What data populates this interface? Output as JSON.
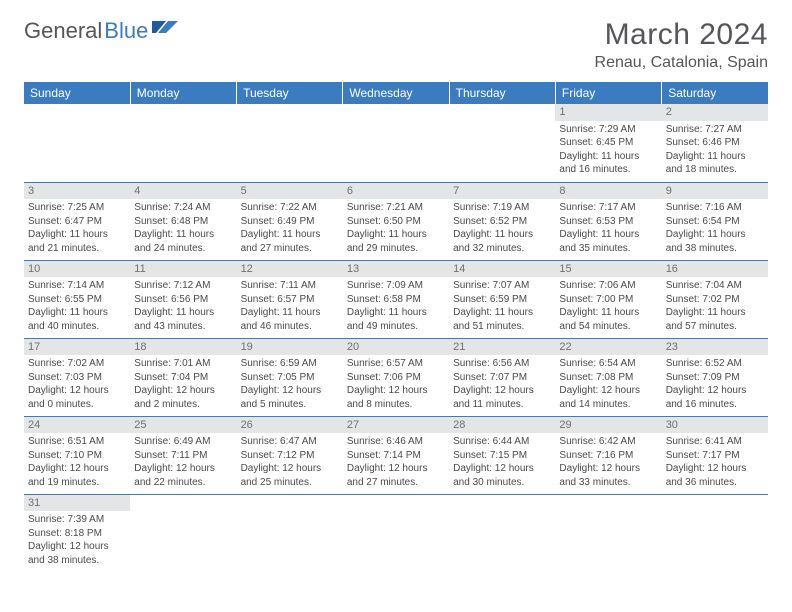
{
  "logo": {
    "text1": "General",
    "text2": "Blue"
  },
  "title": "March 2024",
  "location": "Renau, Catalonia, Spain",
  "colors": {
    "header_bg": "#3b7bbf",
    "header_text": "#ffffff",
    "daynum_bg": "#e4e5e7",
    "rule": "#3b7bbf",
    "body_text": "#4a4a4a",
    "title_text": "#55565a"
  },
  "weekdays": [
    "Sunday",
    "Monday",
    "Tuesday",
    "Wednesday",
    "Thursday",
    "Friday",
    "Saturday"
  ],
  "weeks": [
    [
      {
        "empty": true
      },
      {
        "empty": true
      },
      {
        "empty": true
      },
      {
        "empty": true
      },
      {
        "empty": true
      },
      {
        "day": "1",
        "sunrise": "Sunrise: 7:29 AM",
        "sunset": "Sunset: 6:45 PM",
        "day1": "Daylight: 11 hours",
        "day2": "and 16 minutes."
      },
      {
        "day": "2",
        "sunrise": "Sunrise: 7:27 AM",
        "sunset": "Sunset: 6:46 PM",
        "day1": "Daylight: 11 hours",
        "day2": "and 18 minutes."
      }
    ],
    [
      {
        "day": "3",
        "sunrise": "Sunrise: 7:25 AM",
        "sunset": "Sunset: 6:47 PM",
        "day1": "Daylight: 11 hours",
        "day2": "and 21 minutes."
      },
      {
        "day": "4",
        "sunrise": "Sunrise: 7:24 AM",
        "sunset": "Sunset: 6:48 PM",
        "day1": "Daylight: 11 hours",
        "day2": "and 24 minutes."
      },
      {
        "day": "5",
        "sunrise": "Sunrise: 7:22 AM",
        "sunset": "Sunset: 6:49 PM",
        "day1": "Daylight: 11 hours",
        "day2": "and 27 minutes."
      },
      {
        "day": "6",
        "sunrise": "Sunrise: 7:21 AM",
        "sunset": "Sunset: 6:50 PM",
        "day1": "Daylight: 11 hours",
        "day2": "and 29 minutes."
      },
      {
        "day": "7",
        "sunrise": "Sunrise: 7:19 AM",
        "sunset": "Sunset: 6:52 PM",
        "day1": "Daylight: 11 hours",
        "day2": "and 32 minutes."
      },
      {
        "day": "8",
        "sunrise": "Sunrise: 7:17 AM",
        "sunset": "Sunset: 6:53 PM",
        "day1": "Daylight: 11 hours",
        "day2": "and 35 minutes."
      },
      {
        "day": "9",
        "sunrise": "Sunrise: 7:16 AM",
        "sunset": "Sunset: 6:54 PM",
        "day1": "Daylight: 11 hours",
        "day2": "and 38 minutes."
      }
    ],
    [
      {
        "day": "10",
        "sunrise": "Sunrise: 7:14 AM",
        "sunset": "Sunset: 6:55 PM",
        "day1": "Daylight: 11 hours",
        "day2": "and 40 minutes."
      },
      {
        "day": "11",
        "sunrise": "Sunrise: 7:12 AM",
        "sunset": "Sunset: 6:56 PM",
        "day1": "Daylight: 11 hours",
        "day2": "and 43 minutes."
      },
      {
        "day": "12",
        "sunrise": "Sunrise: 7:11 AM",
        "sunset": "Sunset: 6:57 PM",
        "day1": "Daylight: 11 hours",
        "day2": "and 46 minutes."
      },
      {
        "day": "13",
        "sunrise": "Sunrise: 7:09 AM",
        "sunset": "Sunset: 6:58 PM",
        "day1": "Daylight: 11 hours",
        "day2": "and 49 minutes."
      },
      {
        "day": "14",
        "sunrise": "Sunrise: 7:07 AM",
        "sunset": "Sunset: 6:59 PM",
        "day1": "Daylight: 11 hours",
        "day2": "and 51 minutes."
      },
      {
        "day": "15",
        "sunrise": "Sunrise: 7:06 AM",
        "sunset": "Sunset: 7:00 PM",
        "day1": "Daylight: 11 hours",
        "day2": "and 54 minutes."
      },
      {
        "day": "16",
        "sunrise": "Sunrise: 7:04 AM",
        "sunset": "Sunset: 7:02 PM",
        "day1": "Daylight: 11 hours",
        "day2": "and 57 minutes."
      }
    ],
    [
      {
        "day": "17",
        "sunrise": "Sunrise: 7:02 AM",
        "sunset": "Sunset: 7:03 PM",
        "day1": "Daylight: 12 hours",
        "day2": "and 0 minutes."
      },
      {
        "day": "18",
        "sunrise": "Sunrise: 7:01 AM",
        "sunset": "Sunset: 7:04 PM",
        "day1": "Daylight: 12 hours",
        "day2": "and 2 minutes."
      },
      {
        "day": "19",
        "sunrise": "Sunrise: 6:59 AM",
        "sunset": "Sunset: 7:05 PM",
        "day1": "Daylight: 12 hours",
        "day2": "and 5 minutes."
      },
      {
        "day": "20",
        "sunrise": "Sunrise: 6:57 AM",
        "sunset": "Sunset: 7:06 PM",
        "day1": "Daylight: 12 hours",
        "day2": "and 8 minutes."
      },
      {
        "day": "21",
        "sunrise": "Sunrise: 6:56 AM",
        "sunset": "Sunset: 7:07 PM",
        "day1": "Daylight: 12 hours",
        "day2": "and 11 minutes."
      },
      {
        "day": "22",
        "sunrise": "Sunrise: 6:54 AM",
        "sunset": "Sunset: 7:08 PM",
        "day1": "Daylight: 12 hours",
        "day2": "and 14 minutes."
      },
      {
        "day": "23",
        "sunrise": "Sunrise: 6:52 AM",
        "sunset": "Sunset: 7:09 PM",
        "day1": "Daylight: 12 hours",
        "day2": "and 16 minutes."
      }
    ],
    [
      {
        "day": "24",
        "sunrise": "Sunrise: 6:51 AM",
        "sunset": "Sunset: 7:10 PM",
        "day1": "Daylight: 12 hours",
        "day2": "and 19 minutes."
      },
      {
        "day": "25",
        "sunrise": "Sunrise: 6:49 AM",
        "sunset": "Sunset: 7:11 PM",
        "day1": "Daylight: 12 hours",
        "day2": "and 22 minutes."
      },
      {
        "day": "26",
        "sunrise": "Sunrise: 6:47 AM",
        "sunset": "Sunset: 7:12 PM",
        "day1": "Daylight: 12 hours",
        "day2": "and 25 minutes."
      },
      {
        "day": "27",
        "sunrise": "Sunrise: 6:46 AM",
        "sunset": "Sunset: 7:14 PM",
        "day1": "Daylight: 12 hours",
        "day2": "and 27 minutes."
      },
      {
        "day": "28",
        "sunrise": "Sunrise: 6:44 AM",
        "sunset": "Sunset: 7:15 PM",
        "day1": "Daylight: 12 hours",
        "day2": "and 30 minutes."
      },
      {
        "day": "29",
        "sunrise": "Sunrise: 6:42 AM",
        "sunset": "Sunset: 7:16 PM",
        "day1": "Daylight: 12 hours",
        "day2": "and 33 minutes."
      },
      {
        "day": "30",
        "sunrise": "Sunrise: 6:41 AM",
        "sunset": "Sunset: 7:17 PM",
        "day1": "Daylight: 12 hours",
        "day2": "and 36 minutes."
      }
    ],
    [
      {
        "day": "31",
        "sunrise": "Sunrise: 7:39 AM",
        "sunset": "Sunset: 8:18 PM",
        "day1": "Daylight: 12 hours",
        "day2": "and 38 minutes."
      },
      {
        "empty": true
      },
      {
        "empty": true
      },
      {
        "empty": true
      },
      {
        "empty": true
      },
      {
        "empty": true
      },
      {
        "empty": true
      }
    ]
  ]
}
